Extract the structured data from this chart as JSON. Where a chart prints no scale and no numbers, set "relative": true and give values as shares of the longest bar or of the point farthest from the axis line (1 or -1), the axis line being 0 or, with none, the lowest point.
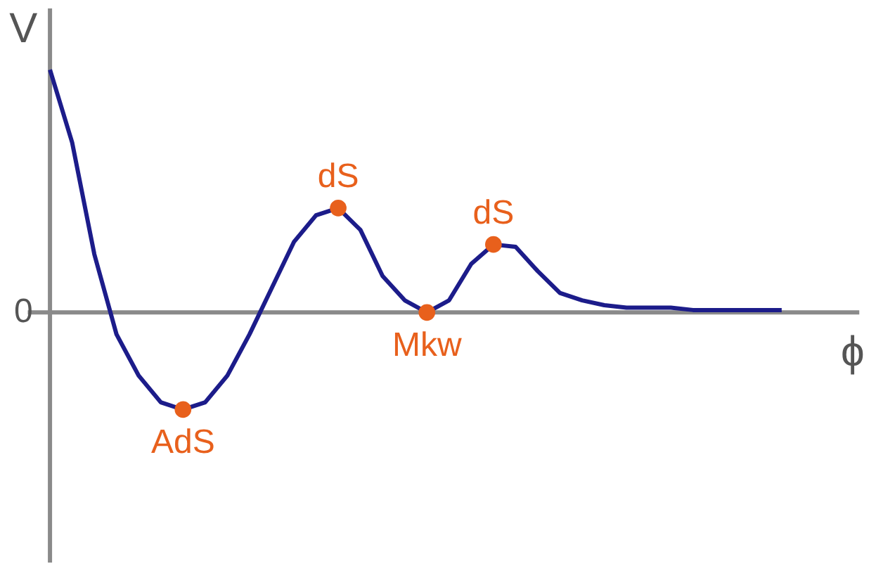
{
  "chart_data": {
    "type": "line",
    "relative": true,
    "xlabel": "ϕ",
    "ylabel": "V",
    "categories": [
      null,
      null,
      null,
      null,
      null,
      null,
      null,
      null,
      null,
      null,
      null,
      null,
      null,
      null,
      null,
      null,
      null,
      null,
      null,
      null,
      null,
      null,
      null,
      null,
      null,
      null,
      null,
      null,
      null,
      null,
      null,
      null,
      null,
      null
    ],
    "series": [
      {
        "color": "#1c1c8a",
        "values": [
          1.0,
          0.7,
          0.24,
          -0.09,
          -0.26,
          -0.37,
          -0.4,
          -0.37,
          -0.26,
          -0.09,
          0.1,
          0.29,
          0.4,
          0.43,
          0.34,
          0.15,
          0.05,
          0,
          0.05,
          0.2,
          0.28,
          0.27,
          0.17,
          0.08,
          0.05,
          0.03,
          0.02,
          0.02,
          0.02,
          0.01,
          0.01,
          0.01,
          0.01,
          0.01
        ]
      }
    ],
    "annotations": [
      {
        "text": "AdS",
        "y": -0.4
      },
      {
        "text": "dS",
        "y": 0.43
      },
      {
        "text": "Mkw",
        "y": 0
      },
      {
        "text": "dS",
        "y": 0.28
      },
      "0"
    ],
    "grid": false
  }
}
